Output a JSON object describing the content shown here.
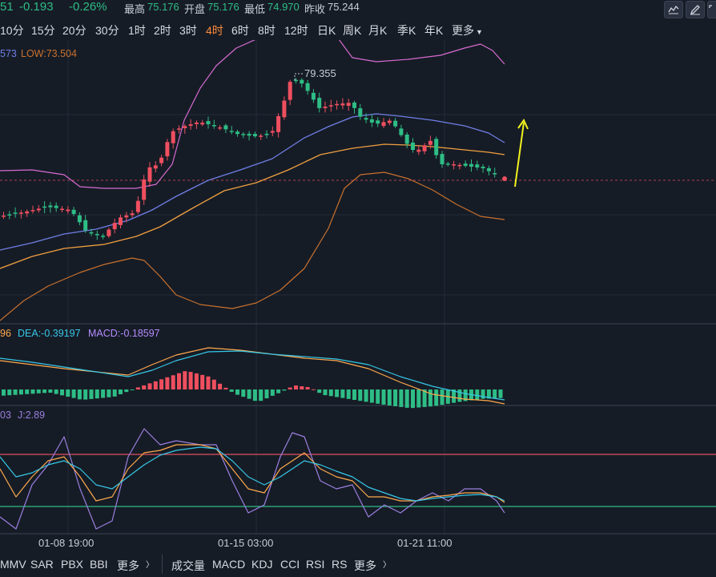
{
  "ticker": {
    "last_fragment": "51",
    "change": "-0.193",
    "change_pct": "-0.26%",
    "high_label": "最高",
    "high": "75.176",
    "open_label": "开盘",
    "open": "75.176",
    "low_label": "最低",
    "low": "74.970",
    "prev_label": "昨收",
    "prev": "75.244"
  },
  "timeframes": [
    "10分",
    "15分",
    "20分",
    "30分",
    "1时",
    "2时",
    "3时",
    "4时",
    "6时",
    "8时",
    "12时",
    "日K",
    "周K",
    "月K",
    "季K",
    "年K"
  ],
  "active_timeframe": "4时",
  "more_label": "更多",
  "toolbar_icons": [
    "indicator-icon",
    "draw-pen-icon",
    "fullscreen-icon"
  ],
  "main_panel": {
    "mid_value_fragment": "573",
    "low_label": "LOW:73.504",
    "peak_label": "79.355",
    "mid_color": "#6f7fe6",
    "band_color": "#d66bd0",
    "lower_band_color": "#c9712d",
    "ma_color": "#f0a040",
    "up_color": "#ef4f5f",
    "down_color": "#2ebd85",
    "arrow_color": "#f2f21e"
  },
  "macd_panel": {
    "dif_fragment": "96",
    "dea": "DEA:-0.39197",
    "macd": "MACD:-0.18597"
  },
  "kdj_panel": {
    "k_fragment": "03",
    "j": "J:2.89"
  },
  "time_axis": [
    "01-08 19:00",
    "01-15 03:00",
    "01-21 11:00"
  ],
  "main_indicators": [
    "MMV",
    "SAR",
    "PBX",
    "BBI"
  ],
  "sub_indicators": [
    "成交量",
    "MACD",
    "KDJ",
    "CCI",
    "RSI",
    "RS"
  ],
  "more_main": "更多",
  "more_sub": "更多"
}
